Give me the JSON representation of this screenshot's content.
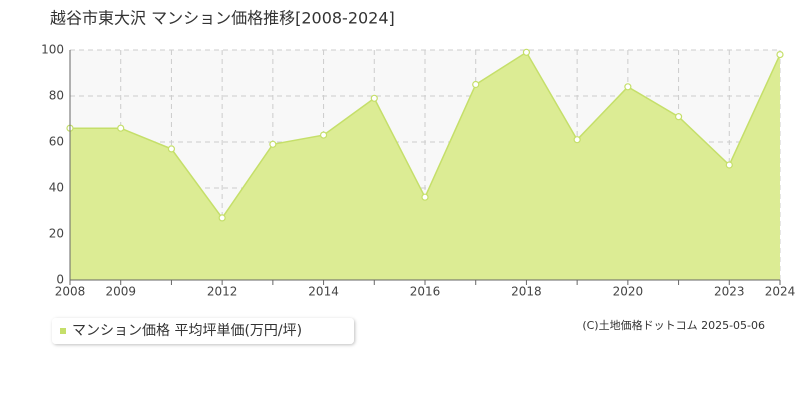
{
  "chart_data": {
    "type": "area",
    "title": "越谷市東大沢 マンション価格推移[2008-2024]",
    "categories": [
      "2008",
      "2009",
      null,
      "2012",
      null,
      "2014",
      null,
      "2016",
      null,
      "2018",
      null,
      "2020",
      null,
      "2023",
      "2024"
    ],
    "series": [
      {
        "name": "マンション価格 平均坪単価(万円/坪)",
        "color": "#c5df6a",
        "values": [
          66,
          66,
          57,
          27,
          59,
          63,
          79,
          36,
          85,
          99,
          61,
          84,
          71,
          50,
          98
        ]
      }
    ],
    "ylim": [
      0,
      100
    ],
    "yticks": [
      0,
      20,
      40,
      60,
      80,
      100
    ],
    "grid": true,
    "copyright": "(C)土地価格ドットコム 2025-05-06"
  }
}
